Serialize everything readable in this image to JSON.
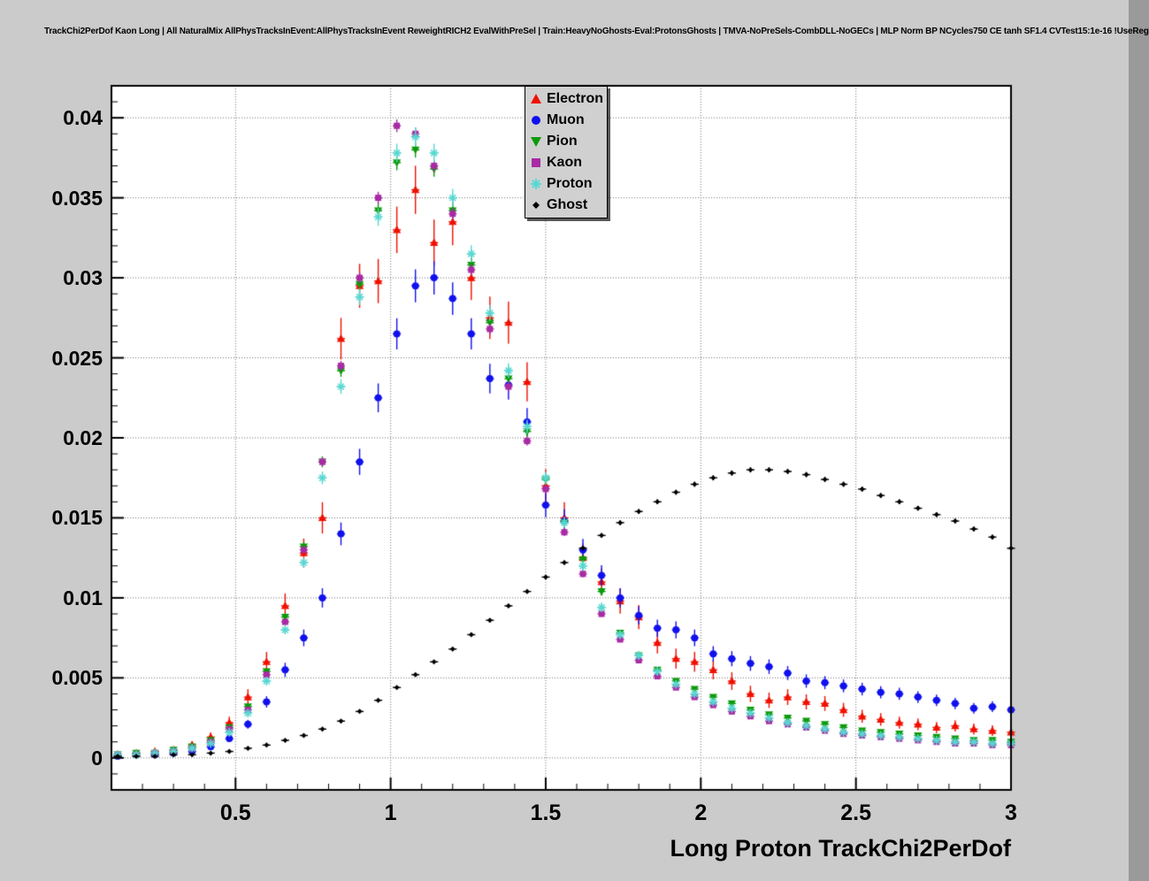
{
  "page": {
    "canvas_background": "#cbcbcb",
    "plot_background": "#ffffff",
    "grid_color": "#6f6f6f",
    "frame_color": "#000000"
  },
  "chart_data": {
    "type": "scatter",
    "title": "TrackChi2PerDof Kaon Long | All NaturalMix AllPhysTracksInEvent:AllPhysTracksInEvent ReweightRICH2 EvalWithPreSel | Train:HeavyNoGhosts-Eval:ProtonsGhosts | TMVA-NoPreSels-CombDLL-NoGECs | MLP Norm BP NCycles750 CE tanh SF1.4 CVTest15:1e-16 !UseReg",
    "xlabel": "Long Proton TrackChi2PerDof",
    "ylabel": "",
    "xlim": [
      0.1,
      3.0
    ],
    "ylim": [
      -0.002,
      0.042
    ],
    "grid": true,
    "legend_position": "top-center",
    "x_ticks": [
      0.5,
      1,
      1.5,
      2,
      2.5,
      3
    ],
    "x_tick_labels": [
      "0.5",
      "1",
      "1.5",
      "2",
      "2.5",
      "3"
    ],
    "y_ticks": [
      0,
      0.005,
      0.01,
      0.015,
      0.02,
      0.025,
      0.03,
      0.035,
      0.04
    ],
    "y_tick_labels": [
      "0",
      "0.005",
      "0.01",
      "0.015",
      "0.02",
      "0.025",
      "0.03",
      "0.035",
      "0.04"
    ],
    "bin_half_width": 0.013,
    "x": [
      0.12,
      0.18,
      0.24,
      0.3,
      0.36,
      0.42,
      0.48,
      0.54,
      0.6,
      0.66,
      0.72,
      0.78,
      0.84,
      0.9,
      0.96,
      1.02,
      1.08,
      1.14,
      1.2,
      1.26,
      1.32,
      1.38,
      1.44,
      1.5,
      1.56,
      1.62,
      1.68,
      1.74,
      1.8,
      1.86,
      1.92,
      1.98,
      2.04,
      2.1,
      2.16,
      2.22,
      2.28,
      2.34,
      2.4,
      2.46,
      2.52,
      2.58,
      2.64,
      2.7,
      2.76,
      2.82,
      2.88,
      2.94,
      3.0
    ],
    "series": [
      {
        "name": "Electron",
        "marker": "triangle-up",
        "color": "#f01000",
        "err_coeff": 0.008,
        "values": [
          0.0002,
          0.0003,
          0.0004,
          0.0005,
          0.0008,
          0.0013,
          0.0022,
          0.0038,
          0.006,
          0.0095,
          0.0128,
          0.015,
          0.0262,
          0.0295,
          0.0298,
          0.033,
          0.0355,
          0.0322,
          0.0335,
          0.03,
          0.0275,
          0.0272,
          0.0235,
          0.017,
          0.015,
          0.0125,
          0.011,
          0.0098,
          0.0088,
          0.0072,
          0.0062,
          0.006,
          0.0055,
          0.0048,
          0.004,
          0.0036,
          0.0038,
          0.0035,
          0.0034,
          0.003,
          0.0026,
          0.0024,
          0.0022,
          0.0021,
          0.0019,
          0.002,
          0.0018,
          0.0017,
          0.0016
        ]
      },
      {
        "name": "Muon",
        "marker": "circle",
        "color": "#1010ee",
        "err_coeff": 0.006,
        "values": [
          0.0001,
          0.0002,
          0.0002,
          0.0003,
          0.0004,
          0.0007,
          0.0012,
          0.0021,
          0.0035,
          0.0055,
          0.0075,
          0.01,
          0.014,
          0.0185,
          0.0225,
          0.0265,
          0.0295,
          0.03,
          0.0287,
          0.0265,
          0.0237,
          0.0233,
          0.021,
          0.0158,
          0.0148,
          0.013,
          0.0114,
          0.01,
          0.0089,
          0.0081,
          0.008,
          0.0075,
          0.0065,
          0.0062,
          0.0059,
          0.0057,
          0.0053,
          0.0048,
          0.0047,
          0.0045,
          0.0043,
          0.0041,
          0.004,
          0.0038,
          0.0036,
          0.0034,
          0.0031,
          0.0032,
          0.003
        ]
      },
      {
        "name": "Pion",
        "marker": "triangle-down",
        "color": "#0b9a0b",
        "err_coeff": 0.0025,
        "values": [
          0.0002,
          0.0003,
          0.0003,
          0.0005,
          0.0007,
          0.0011,
          0.0019,
          0.0032,
          0.0054,
          0.0088,
          0.0132,
          0.0185,
          0.0242,
          0.0296,
          0.0342,
          0.0372,
          0.038,
          0.0368,
          0.0342,
          0.0308,
          0.0272,
          0.0237,
          0.0204,
          0.0174,
          0.0147,
          0.0124,
          0.0104,
          0.0078,
          0.0064,
          0.0055,
          0.0048,
          0.0043,
          0.0038,
          0.0034,
          0.003,
          0.0027,
          0.0025,
          0.0023,
          0.0021,
          0.0019,
          0.0017,
          0.0016,
          0.0015,
          0.0014,
          0.0013,
          0.0012,
          0.0011,
          0.0011,
          0.001
        ]
      },
      {
        "name": "Kaon",
        "marker": "square",
        "color": "#a92aa4",
        "err_coeff": 0.002,
        "values": [
          0.0002,
          0.0002,
          0.0003,
          0.0004,
          0.0006,
          0.001,
          0.0018,
          0.003,
          0.0052,
          0.0085,
          0.013,
          0.0185,
          0.0245,
          0.03,
          0.035,
          0.0395,
          0.039,
          0.037,
          0.034,
          0.0305,
          0.0268,
          0.0232,
          0.0198,
          0.0168,
          0.0141,
          0.0115,
          0.009,
          0.0074,
          0.0061,
          0.0051,
          0.0044,
          0.0038,
          0.0033,
          0.0029,
          0.0026,
          0.0023,
          0.0021,
          0.0019,
          0.0017,
          0.0015,
          0.0014,
          0.0013,
          0.0012,
          0.0011,
          0.001,
          0.0009,
          0.0009,
          0.0008,
          0.0008
        ]
      },
      {
        "name": "Proton",
        "marker": "star",
        "color": "#58d8d2",
        "err_coeff": 0.003,
        "values": [
          0.0002,
          0.0002,
          0.0003,
          0.0004,
          0.0006,
          0.0009,
          0.0016,
          0.0028,
          0.0048,
          0.008,
          0.0122,
          0.0175,
          0.0232,
          0.0288,
          0.0338,
          0.0378,
          0.0388,
          0.0378,
          0.035,
          0.0315,
          0.0278,
          0.0242,
          0.0207,
          0.0175,
          0.0147,
          0.012,
          0.0094,
          0.0077,
          0.0064,
          0.0054,
          0.0046,
          0.004,
          0.0035,
          0.0031,
          0.0028,
          0.0025,
          0.0022,
          0.002,
          0.0018,
          0.0016,
          0.0015,
          0.0014,
          0.0013,
          0.0012,
          0.0011,
          0.001,
          0.001,
          0.0009,
          0.0009
        ]
      },
      {
        "name": "Ghost",
        "marker": "diamond",
        "color": "#000000",
        "err_coeff": 0.0012,
        "values": [
          0.0001,
          0.0001,
          0.0001,
          0.0002,
          0.0002,
          0.0003,
          0.0004,
          0.0006,
          0.0008,
          0.0011,
          0.0014,
          0.0018,
          0.0023,
          0.0029,
          0.0036,
          0.0044,
          0.0052,
          0.006,
          0.0068,
          0.0077,
          0.0086,
          0.0095,
          0.0104,
          0.0113,
          0.0122,
          0.0131,
          0.0139,
          0.0147,
          0.0154,
          0.016,
          0.0166,
          0.0171,
          0.0175,
          0.0178,
          0.018,
          0.018,
          0.0179,
          0.0177,
          0.0174,
          0.0171,
          0.0168,
          0.0164,
          0.016,
          0.0156,
          0.0152,
          0.0148,
          0.0143,
          0.0138,
          0.0131
        ]
      }
    ]
  }
}
